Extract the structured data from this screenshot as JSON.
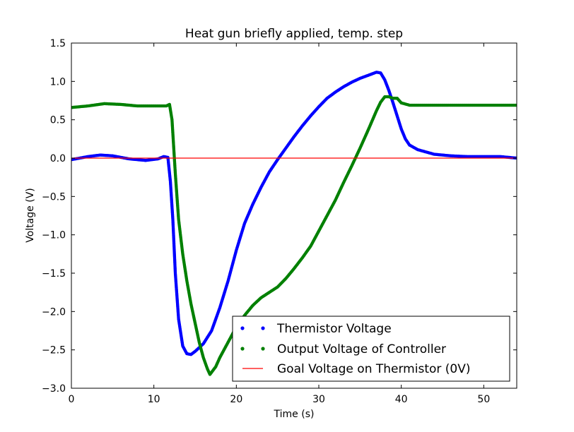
{
  "chart_data": {
    "type": "line",
    "title": "Heat gun briefly applied, temp. step",
    "xlabel": "Time (s)",
    "ylabel": "Voltage (V)",
    "xlim": [
      0,
      54
    ],
    "ylim": [
      -3.0,
      1.5
    ],
    "xticks": [
      0,
      10,
      20,
      30,
      40,
      50
    ],
    "xtick_labels": [
      "0",
      "10",
      "20",
      "30",
      "40",
      "50"
    ],
    "yticks": [
      -3.0,
      -2.5,
      -2.0,
      -1.5,
      -1.0,
      -0.5,
      0.0,
      0.5,
      1.0,
      1.5
    ],
    "ytick_labels": [
      "−3.0",
      "−2.5",
      "−2.0",
      "−1.5",
      "−1.0",
      "−0.5",
      "0.0",
      "0.5",
      "1.0",
      "1.5"
    ],
    "grid": false,
    "legend_position": "lower-right",
    "series": [
      {
        "name": "Thermistor Voltage",
        "style": "dots",
        "color": "#0000ff",
        "x": [
          0,
          2,
          3.5,
          5,
          7,
          9,
          10.5,
          11.2,
          11.7,
          12.0,
          12.3,
          12.6,
          13.0,
          13.5,
          14.0,
          14.5,
          15.0,
          16.0,
          17.0,
          18.0,
          19.0,
          20.0,
          21.0,
          22.0,
          23.0,
          24.0,
          25.0,
          26.0,
          27.0,
          28.0,
          29.0,
          30.0,
          31.0,
          32.0,
          33.0,
          34.0,
          35.0,
          36.0,
          37.0,
          37.5,
          38.0,
          38.5,
          39.0,
          39.5,
          40.0,
          40.5,
          41.0,
          42.0,
          43.0,
          44.0,
          46.0,
          48.0,
          50.0,
          52.0,
          54.0
        ],
        "y": [
          -0.02,
          0.02,
          0.04,
          0.03,
          -0.01,
          -0.03,
          -0.01,
          0.02,
          0.01,
          -0.3,
          -0.8,
          -1.5,
          -2.1,
          -2.45,
          -2.55,
          -2.56,
          -2.52,
          -2.42,
          -2.25,
          -1.95,
          -1.6,
          -1.2,
          -0.85,
          -0.6,
          -0.38,
          -0.18,
          -0.02,
          0.13,
          0.28,
          0.42,
          0.55,
          0.67,
          0.78,
          0.86,
          0.93,
          0.99,
          1.04,
          1.08,
          1.12,
          1.11,
          1.02,
          0.88,
          0.72,
          0.55,
          0.38,
          0.25,
          0.17,
          0.11,
          0.08,
          0.05,
          0.03,
          0.02,
          0.02,
          0.02,
          0.0
        ]
      },
      {
        "name": "Output Voltage of Controller",
        "style": "dots",
        "color": "#008000",
        "x": [
          0,
          2,
          4,
          6,
          8,
          10,
          11.5,
          11.9,
          12.2,
          12.6,
          13.0,
          13.5,
          14.0,
          14.5,
          15.0,
          15.5,
          16.0,
          16.5,
          16.8,
          17.5,
          18.0,
          19.0,
          20.0,
          21.0,
          22.0,
          23.0,
          24.0,
          25.0,
          26.0,
          27.0,
          28.0,
          29.0,
          30.0,
          31.0,
          32.0,
          33.0,
          34.0,
          35.0,
          36.0,
          37.0,
          37.5,
          38.0,
          38.5,
          39.0,
          39.5,
          40.0,
          41.0,
          42.0,
          44.0,
          46.0,
          48.0,
          50.0,
          52.0,
          54.0
        ],
        "y": [
          0.66,
          0.68,
          0.71,
          0.7,
          0.68,
          0.68,
          0.68,
          0.7,
          0.5,
          -0.2,
          -0.8,
          -1.25,
          -1.6,
          -1.9,
          -2.15,
          -2.4,
          -2.6,
          -2.75,
          -2.82,
          -2.72,
          -2.6,
          -2.4,
          -2.2,
          -2.05,
          -1.92,
          -1.82,
          -1.75,
          -1.68,
          -1.57,
          -1.44,
          -1.3,
          -1.15,
          -0.95,
          -0.75,
          -0.55,
          -0.32,
          -0.1,
          0.13,
          0.37,
          0.62,
          0.73,
          0.8,
          0.8,
          0.78,
          0.78,
          0.72,
          0.69,
          0.69,
          0.69,
          0.69,
          0.69,
          0.69,
          0.69,
          0.69
        ]
      },
      {
        "name": "Goal Voltage on Thermistor (0V)",
        "style": "line",
        "color": "#ff0000",
        "x": [
          0,
          54
        ],
        "y": [
          0.0,
          0.0
        ]
      }
    ]
  }
}
